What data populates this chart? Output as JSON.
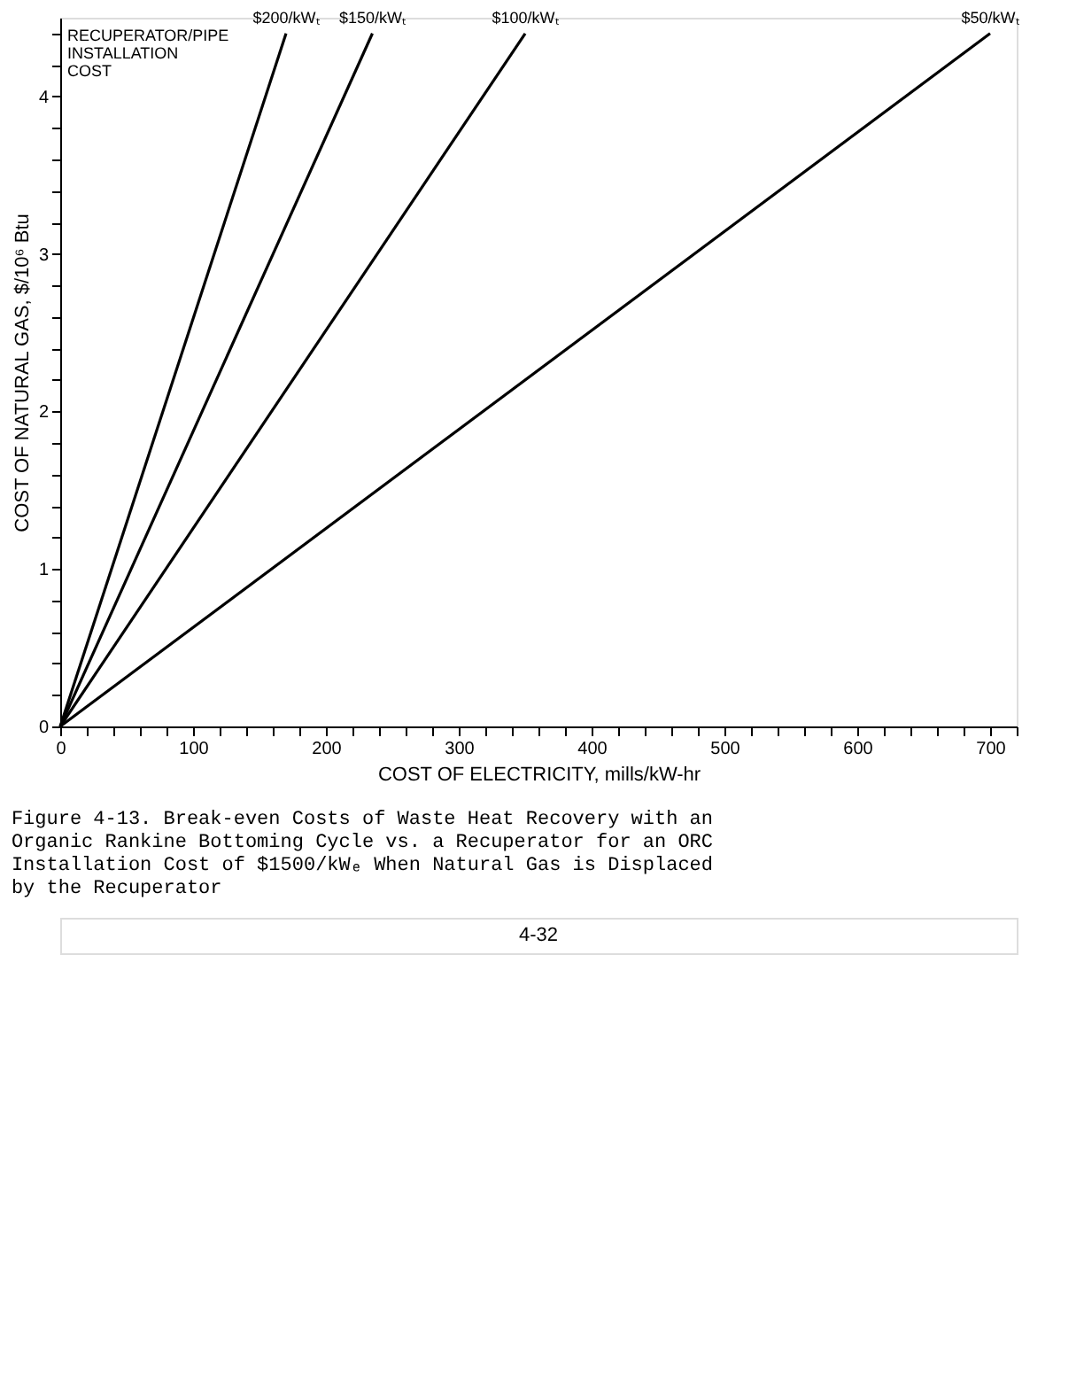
{
  "chart_data": {
    "type": "line",
    "title": "Figure 4-13.  Break-even Costs of Waste Heat Recovery with an Organic Rankine Bottoming Cycle vs. a Recuperator for an ORC Installation Cost of $1500/kWₑ When Natural Gas is Displaced by the Recuperator",
    "xlabel": "COST OF ELECTRICITY, mills/kW-hr",
    "ylabel": "COST OF NATURAL GAS, $/10⁶ Btu",
    "legend_title": "RECUPERATOR/PIPE INSTALLATION COST",
    "series": [
      {
        "name": "$50/kWₜ",
        "color": "#000000",
        "x": [
          0,
          700
        ],
        "values": [
          0,
          4.4
        ]
      },
      {
        "name": "$100/kWₜ",
        "color": "#000000",
        "x": [
          0,
          350
        ],
        "values": [
          0,
          4.4
        ]
      },
      {
        "name": "$150/kWₜ",
        "color": "#000000",
        "x": [
          0,
          235
        ],
        "values": [
          0,
          4.4
        ]
      },
      {
        "name": "$200/kWₜ",
        "color": "#000000",
        "x": [
          0,
          170
        ],
        "values": [
          0,
          4.4
        ]
      }
    ],
    "xlim": [
      0,
      720
    ],
    "xticks": [
      0,
      {
        "value": 20,
        "label": null
      },
      {
        "value": 40,
        "label": null
      },
      {
        "value": 60,
        "label": null
      },
      {
        "value": 80,
        "label": null
      },
      100,
      {
        "value": 120,
        "label": null
      },
      {
        "value": 140,
        "label": null
      },
      {
        "value": 160,
        "label": null
      },
      {
        "value": 180,
        "label": null
      },
      200,
      {
        "value": 220,
        "label": null
      },
      {
        "value": 240,
        "label": null
      },
      {
        "value": 260,
        "label": null
      },
      {
        "value": 280,
        "label": null
      },
      300,
      {
        "value": 320,
        "label": null
      },
      {
        "value": 340,
        "label": null
      },
      {
        "value": 360,
        "label": null
      },
      {
        "value": 380,
        "label": null
      },
      400,
      {
        "value": 420,
        "label": null
      },
      {
        "value": 440,
        "label": null
      },
      {
        "value": 460,
        "label": null
      },
      {
        "value": 480,
        "label": null
      },
      500,
      {
        "value": 520,
        "label": null
      },
      {
        "value": 540,
        "label": null
      },
      {
        "value": 560,
        "label": null
      },
      {
        "value": 580,
        "label": null
      },
      600,
      {
        "value": 620,
        "label": null
      },
      {
        "value": 640,
        "label": null
      },
      {
        "value": 660,
        "label": null
      },
      {
        "value": 680,
        "label": null
      },
      700,
      {
        "value": 720,
        "label": null
      }
    ],
    "ylim": [
      0,
      4.5
    ],
    "yticks": [
      0,
      {
        "value": 0.2,
        "label": null
      },
      {
        "value": 0.4,
        "label": null
      },
      {
        "value": 0.6,
        "label": null
      },
      {
        "value": 0.8,
        "label": null
      },
      1,
      {
        "value": 1.2,
        "label": null
      },
      {
        "value": 1.4,
        "label": null
      },
      {
        "value": 1.6,
        "label": null
      },
      {
        "value": 1.8,
        "label": null
      },
      2,
      {
        "value": 2.2,
        "label": null
      },
      {
        "value": 2.4,
        "label": null
      },
      {
        "value": 2.6,
        "label": null
      },
      {
        "value": 2.8,
        "label": null
      },
      3,
      {
        "value": 3.2,
        "label": null
      },
      {
        "value": 3.4,
        "label": null
      },
      {
        "value": 3.6,
        "label": null
      },
      {
        "value": 3.8,
        "label": null
      },
      4,
      {
        "value": 4.2,
        "label": null
      },
      {
        "value": 4.4,
        "label": null
      }
    ],
    "grid": false,
    "annotations": [
      "4-32"
    ]
  }
}
